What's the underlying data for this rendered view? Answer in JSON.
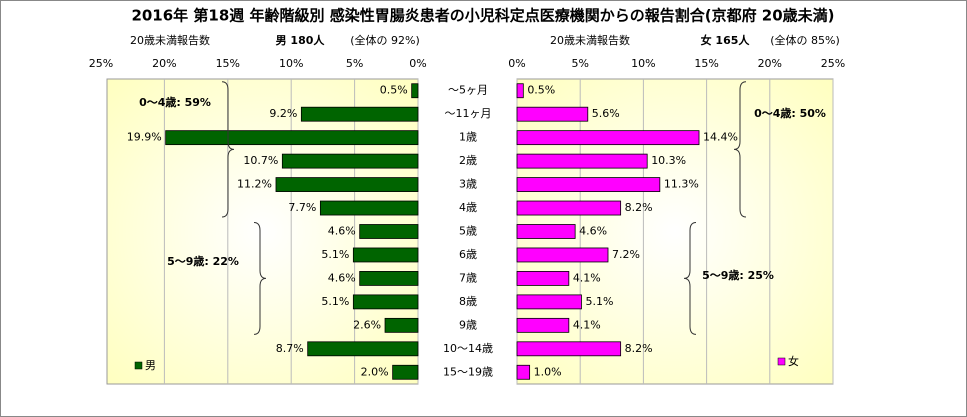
{
  "chart_data": {
    "type": "butterfly",
    "title": "2016年 第18週 年齢階級別 感染性胃腸炎患者の小児科定点医療機関からの報告割合(京都府 20歳未満)",
    "categories": [
      "～5ヶ月",
      "～11ヶ月",
      "1歳",
      "2歳",
      "3歳",
      "4歳",
      "5歳",
      "6歳",
      "7歳",
      "8歳",
      "9歳",
      "10～14歳",
      "15～19歳"
    ],
    "xlim": [
      0,
      25
    ],
    "xticks": [
      {
        "value": 0,
        "label": "0%"
      },
      {
        "value": 5,
        "label": "5%"
      },
      {
        "value": 10,
        "label": "10%"
      },
      {
        "value": 15,
        "label": "15%"
      },
      {
        "value": 20,
        "label": "20%"
      },
      {
        "value": 25,
        "label": "25%"
      }
    ],
    "grid": true,
    "series": [
      {
        "name": "男",
        "color": "#006400",
        "header": [
          "20歳未満報告数",
          "男 180人",
          "(全体の 92%)"
        ],
        "annotations": [
          "0～4歳: 59%",
          "5～9歳: 22%"
        ],
        "values": [
          0.5,
          9.2,
          19.9,
          10.7,
          11.2,
          7.7,
          4.6,
          5.1,
          4.6,
          5.1,
          2.6,
          8.7,
          2.0
        ],
        "value_labels": [
          "0.5%",
          "9.2%",
          "19.9%",
          "10.7%",
          "11.2%",
          "7.7%",
          "4.6%",
          "5.1%",
          "4.6%",
          "5.1%",
          "2.6%",
          "8.7%",
          "2.0%"
        ]
      },
      {
        "name": "女",
        "color": "#ff00ff",
        "header": [
          "20歳未満報告数",
          "女 165人",
          "(全体の 85%)"
        ],
        "annotations": [
          "0～4歳: 50%",
          "5～9歳: 25%"
        ],
        "values": [
          0.5,
          5.6,
          14.4,
          10.3,
          11.3,
          8.2,
          4.6,
          7.2,
          4.1,
          5.1,
          4.1,
          8.2,
          1.0
        ],
        "value_labels": [
          "0.5%",
          "5.6%",
          "14.4%",
          "10.3%",
          "11.3%",
          "8.2%",
          "4.6%",
          "7.2%",
          "4.1%",
          "5.1%",
          "4.1%",
          "8.2%",
          "1.0%"
        ]
      }
    ]
  }
}
